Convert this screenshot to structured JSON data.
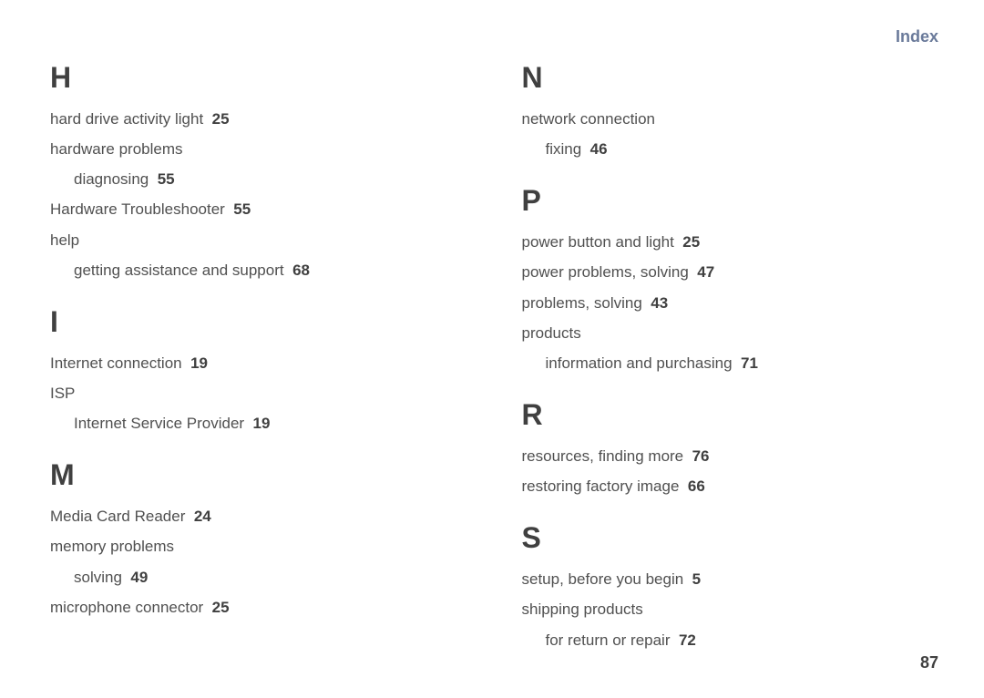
{
  "header": "Index",
  "pageNumber": "87",
  "left": {
    "H": {
      "letter": "H",
      "e1_text": "hard drive activity light",
      "e1_page": "25",
      "e2_text": "hardware problems",
      "e2s_text": "diagnosing",
      "e2s_page": "55",
      "e3_text": "Hardware Troubleshooter",
      "e3_page": "55",
      "e4_text": "help",
      "e4s_text": "getting assistance and support",
      "e4s_page": "68"
    },
    "I": {
      "letter": "I",
      "e1_text": "Internet connection",
      "e1_page": "19",
      "e2_text": "ISP",
      "e2s_text": "Internet Service Provider",
      "e2s_page": "19"
    },
    "M": {
      "letter": "M",
      "e1_text": "Media Card Reader",
      "e1_page": "24",
      "e2_text": "memory problems",
      "e2s_text": "solving",
      "e2s_page": "49",
      "e3_text": "microphone connector",
      "e3_page": "25"
    }
  },
  "right": {
    "N": {
      "letter": "N",
      "e1_text": "network connection",
      "e1s_text": "fixing",
      "e1s_page": "46"
    },
    "P": {
      "letter": "P",
      "e1_text": "power button and light",
      "e1_page": "25",
      "e2_text": "power problems, solving",
      "e2_page": "47",
      "e3_text": "problems, solving",
      "e3_page": "43",
      "e4_text": "products",
      "e4s_text": "information and purchasing",
      "e4s_page": "71"
    },
    "R": {
      "letter": "R",
      "e1_text": "resources, finding more",
      "e1_page": "76",
      "e2_text": "restoring factory image",
      "e2_page": "66"
    },
    "S": {
      "letter": "S",
      "e1_text": "setup, before you begin",
      "e1_page": "5",
      "e2_text": "shipping products",
      "e2s_text": "for return or repair",
      "e2s_page": "72"
    }
  }
}
